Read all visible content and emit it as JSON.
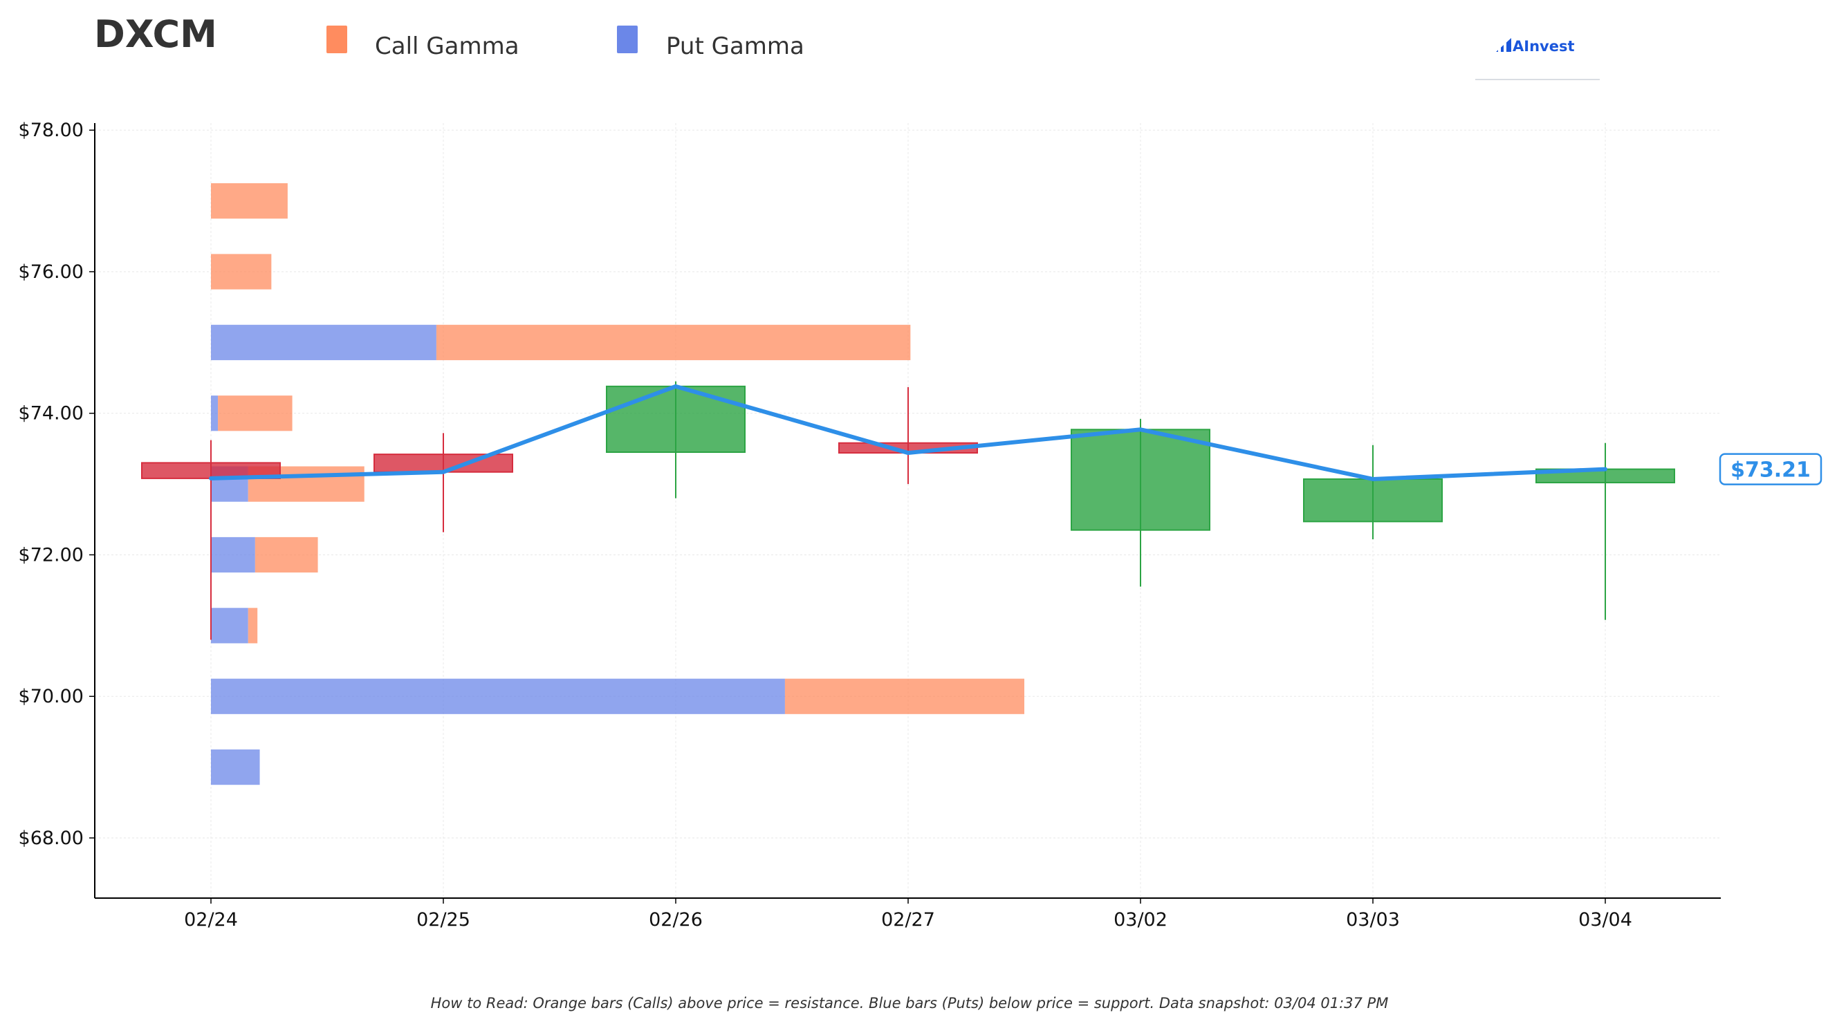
{
  "ticker": "DXCM",
  "brand": "AInvest",
  "legend": [
    {
      "label": "Call Gamma",
      "color": "#ff8c5f"
    },
    {
      "label": "Put Gamma",
      "color": "#6b87e8"
    }
  ],
  "colors": {
    "call": "#ff8c5f",
    "put": "#6b87e8",
    "up": "#2ca444",
    "down": "#d62d3e",
    "line": "#2e8fe8"
  },
  "footer": "How to Read: Orange bars (Calls) above price = resistance. Blue bars (Puts) below price = support. Data snapshot: 03/04 01:37 PM",
  "price_label": "$73.21",
  "chart_data": {
    "type": "candlestick-with-gamma-bars",
    "ylim": [
      67.15,
      78.1
    ],
    "y_ticks": [
      {
        "value": 68,
        "label": "$68.00"
      },
      {
        "value": 70,
        "label": "$70.00"
      },
      {
        "value": 72,
        "label": "$72.00"
      },
      {
        "value": 74,
        "label": "$74.00"
      },
      {
        "value": 76,
        "label": "$76.00"
      },
      {
        "value": 78,
        "label": "$78.00"
      }
    ],
    "categories": [
      "02/24",
      "02/25",
      "02/26",
      "02/27",
      "03/02",
      "03/03",
      "03/04"
    ],
    "candles": [
      {
        "date": "02/24",
        "open": 73.3,
        "high": 73.62,
        "low": 70.8,
        "close": 73.08
      },
      {
        "date": "02/25",
        "open": 73.42,
        "high": 73.72,
        "low": 72.32,
        "close": 73.17
      },
      {
        "date": "02/26",
        "open": 73.45,
        "high": 74.45,
        "low": 72.8,
        "close": 74.38
      },
      {
        "date": "02/27",
        "open": 73.58,
        "high": 74.37,
        "low": 73.0,
        "close": 73.44
      },
      {
        "date": "03/02",
        "open": 72.35,
        "high": 73.92,
        "low": 71.55,
        "close": 73.77
      },
      {
        "date": "03/03",
        "open": 72.47,
        "high": 73.55,
        "low": 72.22,
        "close": 73.07
      },
      {
        "date": "03/04",
        "open": 73.02,
        "high": 73.58,
        "low": 71.08,
        "close": 73.21
      }
    ],
    "gamma_strikes": [
      {
        "strike": 77,
        "put": 0.0,
        "call": 0.33
      },
      {
        "strike": 76,
        "put": 0.0,
        "call": 0.26
      },
      {
        "strike": 75,
        "put": 0.97,
        "call": 2.04
      },
      {
        "strike": 74,
        "put": 0.03,
        "call": 0.32
      },
      {
        "strike": 73,
        "put": 0.16,
        "call": 0.5
      },
      {
        "strike": 72,
        "put": 0.19,
        "call": 0.27
      },
      {
        "strike": 71,
        "put": 0.16,
        "call": 0.04
      },
      {
        "strike": 70,
        "put": 2.47,
        "call": 1.03
      },
      {
        "strike": 69,
        "put": 0.21,
        "call": 0.0
      }
    ]
  }
}
